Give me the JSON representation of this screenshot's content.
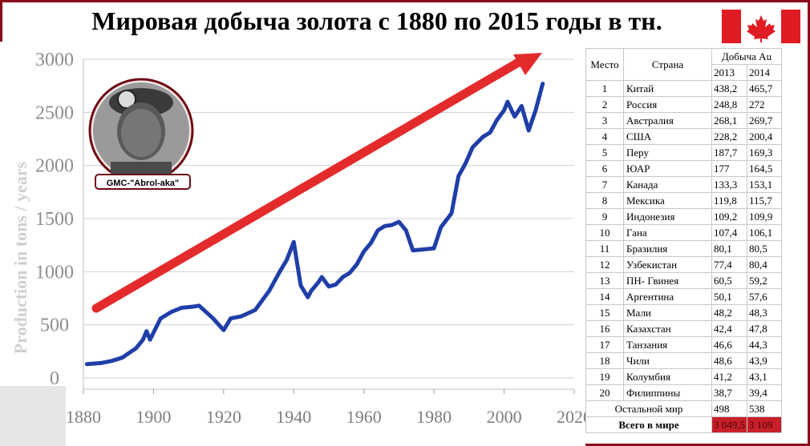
{
  "title": "Мировая добыча золота с 1880 по 2015 годы в тн.",
  "flag_icon": "canada-flag-icon",
  "portrait_caption": "GMC-\"Abrol-aka\"",
  "colors": {
    "frame": "#8b0d1a",
    "line": "#1f3ea8",
    "arrow": "#e32b2b",
    "flag_red": "#e01b24"
  },
  "chart_data": {
    "type": "line",
    "title": "Мировая добыча золота с 1880 по 2015 годы в тн.",
    "xlabel": "",
    "ylabel": "Production in tons / years",
    "xlim": [
      1880,
      2020
    ],
    "ylim": [
      0,
      3000
    ],
    "x_ticks": [
      "1880",
      "1900",
      "1920",
      "1940",
      "1960",
      "1980",
      "2000",
      "2020"
    ],
    "y_ticks": [
      "0",
      "500",
      "1000",
      "1500",
      "2000",
      "2500",
      "3000"
    ],
    "grid": true,
    "series": [
      {
        "x": [
          1881,
          1885,
          1888,
          1891,
          1895,
          1897,
          1898,
          1899,
          1902,
          1905,
          1908,
          1911,
          1913,
          1915,
          1917,
          1920,
          1922,
          1925,
          1929,
          1933,
          1936,
          1938,
          1940,
          1941,
          1942,
          1944,
          1945,
          1947,
          1948,
          1950,
          1952,
          1954,
          1956,
          1958,
          1960,
          1962,
          1964,
          1966,
          1968,
          1970,
          1972,
          1974,
          1977,
          1980,
          1982,
          1985,
          1987,
          1989,
          1991,
          1994,
          1996,
          1998,
          2000,
          2001,
          2003,
          2005,
          2007,
          2009,
          2011
        ],
        "y": [
          130,
          140,
          160,
          190,
          280,
          360,
          440,
          360,
          560,
          620,
          660,
          670,
          680,
          620,
          560,
          450,
          560,
          580,
          640,
          820,
          1000,
          1110,
          1280,
          1070,
          870,
          760,
          820,
          900,
          950,
          860,
          880,
          950,
          990,
          1070,
          1190,
          1270,
          1390,
          1430,
          1440,
          1470,
          1390,
          1200,
          1210,
          1220,
          1420,
          1550,
          1900,
          2020,
          2170,
          2270,
          2310,
          2430,
          2520,
          2600,
          2460,
          2560,
          2330,
          2520,
          2770
        ]
      }
    ],
    "annotations": [
      "Production in tons / years"
    ]
  },
  "table": {
    "headers": {
      "place": "Место",
      "country": "Страна",
      "production": "Добыча Au",
      "y2013": "2013",
      "y2014": "2014"
    },
    "rows": [
      {
        "place": "1",
        "country": "Китай",
        "y2013": "438,2",
        "y2014": "465,7"
      },
      {
        "place": "2",
        "country": "Россия",
        "y2013": "248,8",
        "y2014": "272"
      },
      {
        "place": "3",
        "country": "Австралия",
        "y2013": "268,1",
        "y2014": "269,7"
      },
      {
        "place": "4",
        "country": "США",
        "y2013": "228,2",
        "y2014": "200,4"
      },
      {
        "place": "5",
        "country": "Перу",
        "y2013": "187,7",
        "y2014": "169,3"
      },
      {
        "place": "6",
        "country": "ЮАР",
        "y2013": "177",
        "y2014": "164,5"
      },
      {
        "place": "7",
        "country": "Канада",
        "y2013": "133,3",
        "y2014": "153,1"
      },
      {
        "place": "8",
        "country": "Мексика",
        "y2013": "119,8",
        "y2014": "115,7"
      },
      {
        "place": "9",
        "country": "Индонезия",
        "y2013": "109,2",
        "y2014": "109,9"
      },
      {
        "place": "10",
        "country": "Гана",
        "y2013": "107,4",
        "y2014": "106,1"
      },
      {
        "place": "11",
        "country": "Бразилия",
        "y2013": "80,1",
        "y2014": "80,5"
      },
      {
        "place": "12",
        "country": "Узбекистан",
        "y2013": "77,4",
        "y2014": "80,4"
      },
      {
        "place": "13",
        "country": "ПН- Гвинея",
        "y2013": "60,5",
        "y2014": "59,2"
      },
      {
        "place": "14",
        "country": "Аргентина",
        "y2013": "50,1",
        "y2014": "57,6"
      },
      {
        "place": "15",
        "country": "Мали",
        "y2013": "48,2",
        "y2014": "48,3"
      },
      {
        "place": "16",
        "country": "Казахстан",
        "y2013": "42,4",
        "y2014": "47,8"
      },
      {
        "place": "17",
        "country": "Танзания",
        "y2013": "46,6",
        "y2014": "44,3"
      },
      {
        "place": "18",
        "country": "Чили",
        "y2013": "48,6",
        "y2014": "43,9"
      },
      {
        "place": "19",
        "country": "Колумбия",
        "y2013": "41,2",
        "y2014": "43,1"
      },
      {
        "place": "20",
        "country": "Филиппины",
        "y2013": "38,7",
        "y2014": "39,4"
      }
    ],
    "rest": {
      "label": "Остальной мир",
      "y2013": "498",
      "y2014": "538"
    },
    "total": {
      "label": "Всего в мире",
      "y2013": "3 049,5",
      "y2014": "3 109"
    }
  }
}
